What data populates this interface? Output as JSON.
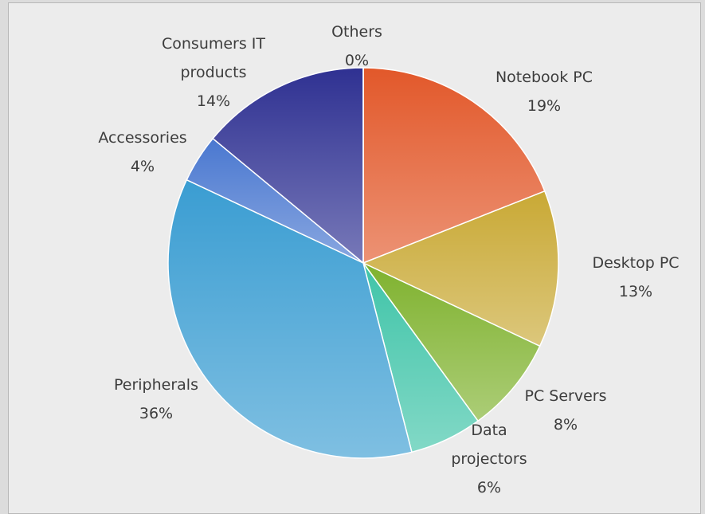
{
  "chart_data": {
    "type": "pie",
    "categories": [
      "Notebook PC",
      "Desktop PC",
      "PC Servers",
      "Data projectors",
      "Peripherals",
      "Accessories",
      "Consumers IT products",
      "Others"
    ],
    "values": [
      19,
      13,
      8,
      6,
      36,
      4,
      14,
      0
    ],
    "value_labels": [
      "19%",
      "13%",
      "8%",
      "6%",
      "36%",
      "4%",
      "14%",
      "0%"
    ],
    "colors": [
      "#e2582a",
      "#c9a935",
      "#7fb22e",
      "#3fc4a8",
      "#3a9dd2",
      "#4a78d0",
      "#2f3192",
      "#505050"
    ]
  }
}
